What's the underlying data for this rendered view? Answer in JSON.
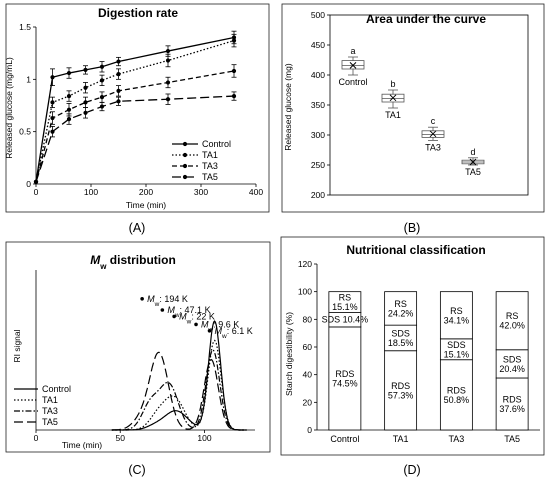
{
  "panels": [
    {
      "label": "(A)",
      "letter": "A"
    },
    {
      "label": "(B)",
      "letter": "B"
    },
    {
      "label": "(C)",
      "letter": "C"
    },
    {
      "label": "(D)",
      "letter": "D"
    }
  ],
  "chart_data": [
    {
      "id": "A",
      "type": "line",
      "title": "Digestion rate",
      "xlabel": "Time (min)",
      "ylabel": "Released glucose (mg/mL)",
      "xlim": [
        0,
        400
      ],
      "ylim": [
        0,
        1.5
      ],
      "xticks": [
        "0",
        "100",
        "200",
        "300",
        "400"
      ],
      "yticks": [
        "0",
        "0.5",
        "1",
        "1.5"
      ],
      "x": [
        0,
        30,
        60,
        90,
        120,
        150,
        240,
        360
      ],
      "series": [
        {
          "name": "Control",
          "dash": "solid",
          "values": [
            0.02,
            1.02,
            1.06,
            1.09,
            1.12,
            1.17,
            1.27,
            1.4
          ],
          "err": [
            0,
            0.08,
            0.05,
            0.04,
            0.05,
            0.04,
            0.05,
            0.06
          ]
        },
        {
          "name": "TA1",
          "dash": "dot",
          "values": [
            0.02,
            0.78,
            0.84,
            0.92,
            0.99,
            1.05,
            1.18,
            1.37
          ],
          "err": [
            0,
            0.05,
            0.05,
            0.05,
            0.05,
            0.05,
            0.06,
            0.06
          ]
        },
        {
          "name": "TA3",
          "dash": "dash",
          "values": [
            0.02,
            0.63,
            0.71,
            0.78,
            0.83,
            0.89,
            0.97,
            1.08
          ],
          "err": [
            0,
            0.06,
            0.06,
            0.05,
            0.05,
            0.05,
            0.05,
            0.06
          ]
        },
        {
          "name": "TA5",
          "dash": "longdash",
          "values": [
            0.02,
            0.5,
            0.62,
            0.68,
            0.74,
            0.79,
            0.81,
            0.84
          ],
          "err": [
            0,
            0.05,
            0.05,
            0.05,
            0.04,
            0.04,
            0.05,
            0.04
          ]
        }
      ],
      "legend": "bottom-right",
      "grid": false
    },
    {
      "id": "B",
      "type": "box",
      "title": "Area under the curve",
      "xlabel": "",
      "ylabel": "Released glucose (mg)",
      "ylim": [
        200,
        500
      ],
      "yticks": [
        "200",
        "250",
        "300",
        "350",
        "400",
        "450",
        "500"
      ],
      "boxes": [
        {
          "name": "Control",
          "letter": "a",
          "pos": 1,
          "min": 400,
          "q1": 410,
          "median": 416,
          "mean": 416,
          "q3": 424,
          "max": 430
        },
        {
          "name": "TA1",
          "letter": "b",
          "pos": 2,
          "min": 345,
          "q1": 355,
          "median": 361,
          "mean": 362,
          "q3": 368,
          "max": 375
        },
        {
          "name": "TA3",
          "letter": "c",
          "pos": 3,
          "min": 291,
          "q1": 296,
          "median": 301,
          "mean": 302,
          "q3": 307,
          "max": 313
        },
        {
          "name": "TA5",
          "letter": "d",
          "pos": 4,
          "min": 250,
          "q1": 252,
          "median": 255,
          "mean": 255,
          "q3": 258,
          "max": 262
        }
      ],
      "grid": false
    },
    {
      "id": "C",
      "type": "line",
      "title_italic": "M",
      "title_sub": "w",
      "title_rest": " distribution",
      "xlabel": "Time (min)",
      "ylabel": "RI signal",
      "xlim": [
        0,
        130
      ],
      "xticks": [
        "0",
        "50",
        "100"
      ],
      "legend": "bottom-left",
      "grid": false,
      "series": [
        {
          "name": "Control",
          "dash": "solid"
        },
        {
          "name": "TA1",
          "dash": "dot"
        },
        {
          "name": "TA3",
          "dash": "dashdot"
        },
        {
          "name": "TA5",
          "dash": "longdash"
        }
      ],
      "annotations": [
        {
          "prefix": "M",
          "sub": "w",
          "value": ": 194 K",
          "x": 63,
          "y": 0.82
        },
        {
          "prefix": "M",
          "sub": "w",
          "value": ": 47.1 K",
          "x": 75,
          "y": 0.75
        },
        {
          "prefix": "M",
          "sub": "w",
          "value": ": 22 K",
          "x": 82,
          "y": 0.71
        },
        {
          "prefix": "M",
          "sub": "w",
          "value": ": 9.6 K",
          "x": 95,
          "y": 0.66
        },
        {
          "prefix": "M",
          "sub": "w",
          "value": ": 6.1 K",
          "x": 103,
          "y": 0.62
        }
      ]
    },
    {
      "id": "D",
      "type": "bar",
      "stacked": true,
      "title": "Nutritional classification",
      "xlabel": "",
      "ylabel": "Starch digestibility (%)",
      "ylim": [
        0,
        120
      ],
      "yticks": [
        "0",
        "20",
        "40",
        "60",
        "80",
        "100",
        "120"
      ],
      "categories": [
        "Control",
        "TA1",
        "TA3",
        "TA5"
      ],
      "series": [
        {
          "name": "RDS",
          "values": [
            74.5,
            57.3,
            50.8,
            37.6
          ],
          "labels": [
            "74.5%",
            "57.3%",
            "50.8%",
            "37.6%"
          ]
        },
        {
          "name": "SDS",
          "values": [
            10.4,
            18.5,
            15.1,
            20.4
          ],
          "labels": [
            "10.4%",
            "18.5%",
            "15.1%",
            "20.4%"
          ]
        },
        {
          "name": "RS",
          "values": [
            15.1,
            24.2,
            34.1,
            42.0
          ],
          "labels": [
            "15.1%",
            "24.2%",
            "34.1%",
            "42.0%"
          ]
        }
      ],
      "grid": false
    }
  ]
}
